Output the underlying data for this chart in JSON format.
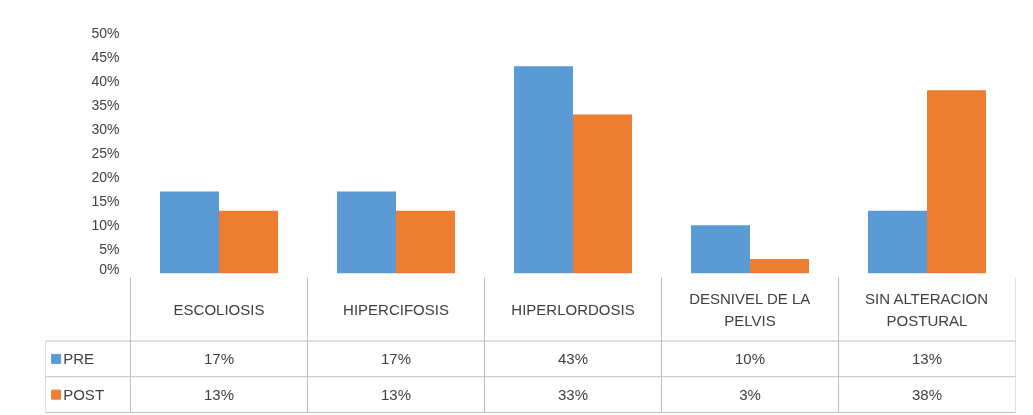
{
  "chart_data": {
    "type": "bar",
    "categories": [
      "ESCOLIOSIS",
      "HIPERCIFOSIS",
      "HIPERLORDOSIS",
      "DESNIVEL DE LA PELVIS",
      "SIN ALTERACION POSTURAL"
    ],
    "series": [
      {
        "name": "PRE",
        "color": "#5b9bd5",
        "values": [
          17,
          17,
          43,
          10,
          13
        ],
        "value_labels": [
          "17%",
          "17%",
          "43%",
          "10%",
          "13%"
        ]
      },
      {
        "name": "POST",
        "color": "#ed7d31",
        "values": [
          13,
          13,
          33,
          3,
          38
        ],
        "value_labels": [
          "13%",
          "13%",
          "33%",
          "3%",
          "38%"
        ]
      }
    ],
    "ylim": [
      0,
      50
    ],
    "yticks": [
      {
        "value": 0,
        "label": "0%"
      },
      {
        "value": 5,
        "label": "5%"
      },
      {
        "value": 10,
        "label": "10%"
      },
      {
        "value": 15,
        "label": "15%"
      },
      {
        "value": 20,
        "label": "20%"
      },
      {
        "value": 25,
        "label": "25%"
      },
      {
        "value": 30,
        "label": "30%"
      },
      {
        "value": 35,
        "label": "35%"
      },
      {
        "value": 40,
        "label": "40%"
      },
      {
        "value": 45,
        "label": "45%"
      },
      {
        "value": 50,
        "label": "50%"
      }
    ],
    "grid": false,
    "legend": "bottom left"
  }
}
